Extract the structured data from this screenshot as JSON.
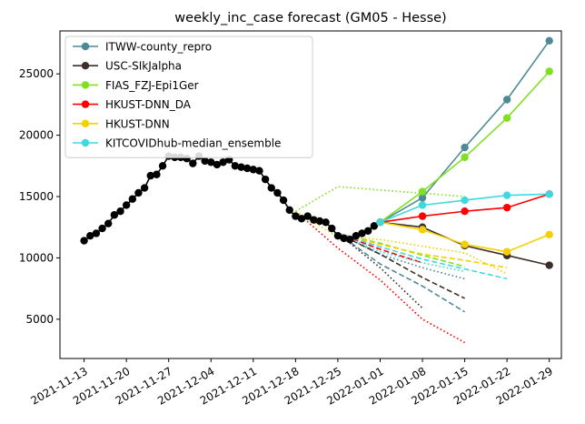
{
  "chart_data": {
    "type": "line",
    "title": "weekly_inc_case forecast (GM05 - Hesse)",
    "xlabel": "",
    "ylabel": "",
    "xlim": [
      "2021-11-09",
      "2022-01-31"
    ],
    "ylim": [
      1800,
      28500
    ],
    "yticks": [
      5000,
      10000,
      15000,
      20000,
      25000
    ],
    "xticks": [
      "2021-11-13",
      "2021-11-20",
      "2021-11-27",
      "2021-12-04",
      "2021-12-11",
      "2021-12-18",
      "2021-12-25",
      "2022-01-01",
      "2022-01-08",
      "2022-01-15",
      "2022-01-22",
      "2022-01-29"
    ],
    "grid": false,
    "legend_position": "top-left",
    "observed": {
      "color": "#000000",
      "x": [
        "2021-11-13",
        "2021-11-14",
        "2021-11-15",
        "2021-11-16",
        "2021-11-17",
        "2021-11-18",
        "2021-11-19",
        "2021-11-20",
        "2021-11-21",
        "2021-11-22",
        "2021-11-23",
        "2021-11-24",
        "2021-11-25",
        "2021-11-26",
        "2021-11-27",
        "2021-11-28",
        "2021-11-29",
        "2021-11-30",
        "2021-12-01",
        "2021-12-02",
        "2021-12-03",
        "2021-12-04",
        "2021-12-05",
        "2021-12-06",
        "2021-12-07",
        "2021-12-08",
        "2021-12-09",
        "2021-12-10",
        "2021-12-11",
        "2021-12-12",
        "2021-12-13",
        "2021-12-14",
        "2021-12-15",
        "2021-12-16",
        "2021-12-17",
        "2021-12-18",
        "2021-12-19",
        "2021-12-20",
        "2021-12-21",
        "2021-12-22",
        "2021-12-23",
        "2021-12-24",
        "2021-12-25",
        "2021-12-26",
        "2021-12-27",
        "2021-12-28",
        "2021-12-29",
        "2021-12-30",
        "2021-12-31",
        "2022-01-01"
      ],
      "y": [
        11400,
        11800,
        12000,
        12400,
        12800,
        13500,
        13800,
        14300,
        14800,
        15300,
        15700,
        16700,
        16800,
        17500,
        18300,
        18200,
        18200,
        18100,
        17700,
        18300,
        17900,
        17800,
        17600,
        17800,
        18000,
        17500,
        17400,
        17300,
        17200,
        17100,
        16400,
        15700,
        15300,
        14700,
        13900,
        13400,
        13200,
        13400,
        13100,
        13000,
        12900,
        12400,
        11800,
        11600,
        11500,
        11800,
        12000,
        12200,
        12600,
        12900
      ]
    },
    "series": [
      {
        "name": "ITWW-county_repro",
        "color": "#4e8a94",
        "x": [
          "2022-01-01",
          "2022-01-08",
          "2022-01-15",
          "2022-01-22",
          "2022-01-29"
        ],
        "median": [
          12900,
          14900,
          19000,
          22900,
          27700
        ],
        "retro_dashed": {
          "x": [
            "2021-12-25",
            "2022-01-01",
            "2022-01-08",
            "2022-01-15"
          ],
          "y": [
            12000,
            9500,
            7700,
            5600
          ]
        },
        "retro_dotted": {
          "x": [
            "2021-12-25",
            "2022-01-01",
            "2022-01-08",
            "2022-01-15"
          ],
          "y": [
            12000,
            10300,
            9200,
            8300
          ]
        }
      },
      {
        "name": "USC-SIkJalpha",
        "color": "#3c2f2a",
        "x": [
          "2022-01-01",
          "2022-01-08",
          "2022-01-15",
          "2022-01-22",
          "2022-01-29"
        ],
        "median": [
          12900,
          12500,
          11000,
          10200,
          9400
        ],
        "retro_dashed": {
          "x": [
            "2021-12-25",
            "2022-01-01",
            "2022-01-08",
            "2022-01-15"
          ],
          "y": [
            12000,
            10300,
            8400,
            6700
          ]
        },
        "retro_dotted": {
          "x": [
            "2021-12-25",
            "2022-01-01",
            "2022-01-08"
          ],
          "y": [
            12000,
            9200,
            5900
          ]
        }
      },
      {
        "name": "FIAS_FZJ-Epi1Ger",
        "color": "#80e020",
        "x": [
          "2022-01-01",
          "2022-01-08",
          "2022-01-15",
          "2022-01-22",
          "2022-01-29"
        ],
        "median": [
          12900,
          15400,
          18200,
          21400,
          25200
        ],
        "retro_dashed": {
          "x": [
            "2021-12-25",
            "2022-01-01",
            "2022-01-08",
            "2022-01-15"
          ],
          "y": [
            12000,
            11200,
            10200,
            9300
          ]
        },
        "retro_dotted": {
          "x": [
            "2021-12-18",
            "2021-12-25",
            "2022-01-15"
          ],
          "y": [
            13800,
            15800,
            15000
          ]
        }
      },
      {
        "name": "HKUST-DNN_DA",
        "color": "#ff0000",
        "x": [
          "2022-01-01",
          "2022-01-08",
          "2022-01-15",
          "2022-01-22",
          "2022-01-29"
        ],
        "median": [
          12900,
          13400,
          13800,
          14100,
          15200
        ],
        "retro_dashed": {
          "x": [
            "2021-12-25",
            "2022-01-01",
            "2022-01-08"
          ],
          "y": [
            12000,
            10700,
            9600
          ]
        },
        "retro_dotted": {
          "x": [
            "2021-12-18",
            "2021-12-25",
            "2022-01-01",
            "2022-01-08",
            "2022-01-15"
          ],
          "y": [
            13800,
            10800,
            8200,
            5000,
            3100
          ]
        }
      },
      {
        "name": "HKUST-DNN",
        "color": "#f5d000",
        "x": [
          "2022-01-01",
          "2022-01-08",
          "2022-01-15",
          "2022-01-22",
          "2022-01-29"
        ],
        "median": [
          12900,
          12300,
          11100,
          10500,
          11900
        ],
        "retro_dashed": {
          "x": [
            "2021-12-25",
            "2022-01-01",
            "2022-01-08",
            "2022-01-15",
            "2022-01-22"
          ],
          "y": [
            12000,
            11100,
            10300,
            9800,
            9200
          ]
        },
        "retro_dotted": {
          "x": [
            "2021-12-18",
            "2021-12-25",
            "2022-01-01",
            "2022-01-15",
            "2022-01-22"
          ],
          "y": [
            13800,
            11700,
            11500,
            10400,
            8700
          ]
        }
      },
      {
        "name": "KITCOVIDhub-median_ensemble",
        "color": "#40d8e0",
        "x": [
          "2022-01-01",
          "2022-01-08",
          "2022-01-15",
          "2022-01-22",
          "2022-01-29"
        ],
        "median": [
          12900,
          14300,
          14700,
          15100,
          15200
        ],
        "retro_dashed": {
          "x": [
            "2021-12-25",
            "2022-01-01",
            "2022-01-08",
            "2022-01-15",
            "2022-01-22"
          ],
          "y": [
            12000,
            10900,
            9900,
            9100,
            8300
          ]
        },
        "retro_dotted": {
          "x": [
            "2021-12-25",
            "2022-01-01",
            "2022-01-08",
            "2022-01-15"
          ],
          "y": [
            12000,
            10500,
            9600,
            8900
          ]
        }
      }
    ]
  }
}
